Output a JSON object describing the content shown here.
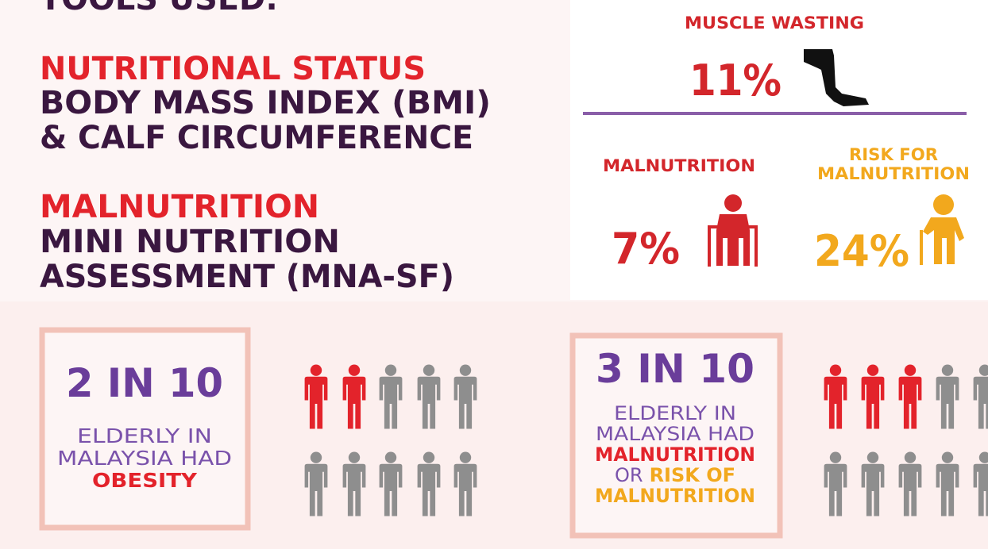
{
  "tools": {
    "heading": "TOOLS USED:",
    "items": [
      {
        "label": "NUTRITIONAL STATUS",
        "lines": [
          "BODY MASS INDEX (BMI)",
          "& CALF CIRCUMFERENCE"
        ]
      },
      {
        "label": "MALNUTRITION",
        "lines": [
          "MINI NUTRITION",
          "ASSESSMENT (MNA-SF)"
        ]
      }
    ]
  },
  "stats": {
    "muscle_wasting": {
      "title": "MUSCLE WASTING",
      "value": "11%"
    },
    "malnutrition": {
      "title": "MALNUTRITION",
      "value": "7%"
    },
    "risk": {
      "title": [
        "RISK FOR",
        "MALNUTRITION"
      ],
      "value": "24%"
    }
  },
  "cards": [
    {
      "headline": "2 IN 10",
      "lines": [
        "ELDERLY IN",
        "MALAYSIA HAD"
      ],
      "highlight": "OBESITY"
    },
    {
      "headline": "3 IN 10",
      "lines": [
        "ELDERLY IN",
        "MALAYSIA HAD"
      ],
      "highlight": "MALNUTRITION",
      "connector": "OR",
      "risk": [
        "RISK OF",
        "MALNUTRITION"
      ]
    }
  ]
}
